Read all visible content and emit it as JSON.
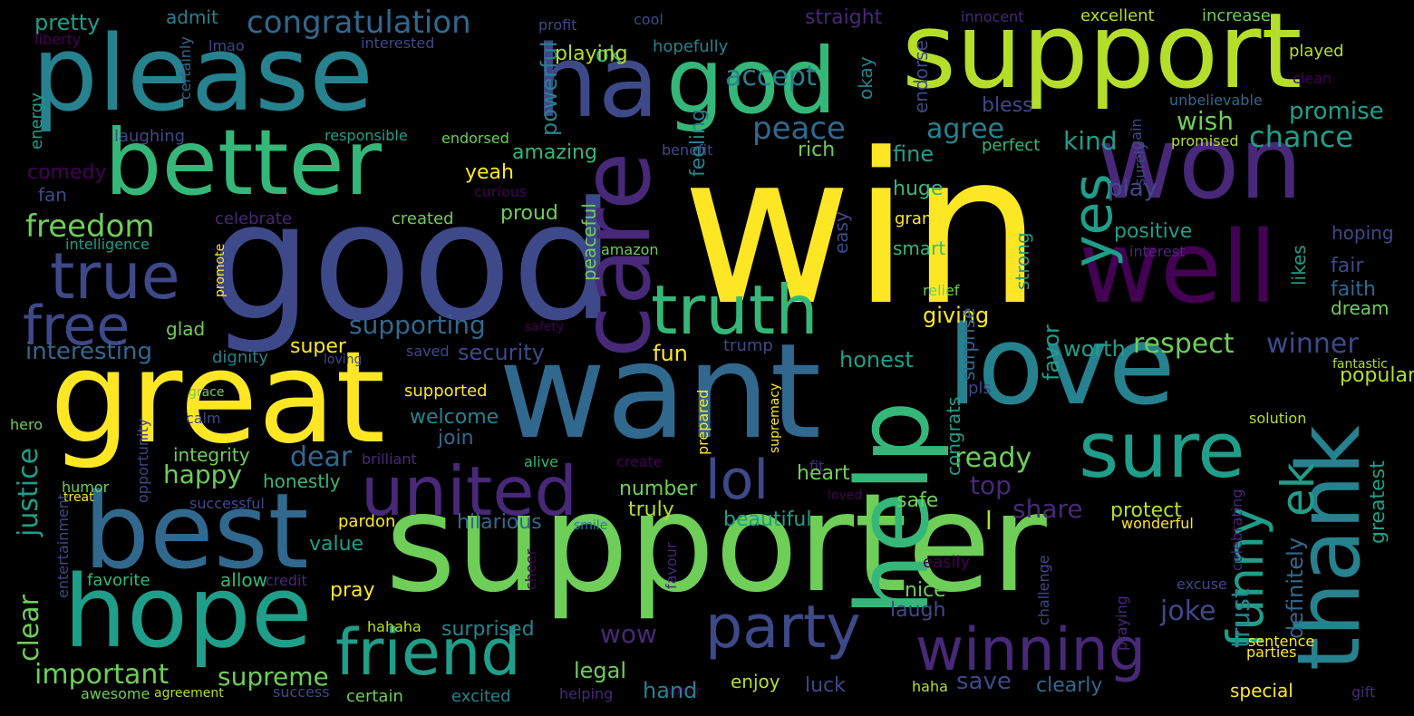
{
  "colors": {
    "background": "#000000",
    "c1": "#440154",
    "c2": "#482878",
    "c3": "#3e4989",
    "c4": "#31688e",
    "c5": "#26828e",
    "c6": "#1f9e89",
    "c7": "#35b779",
    "c8": "#6ece58",
    "c9": "#b5de2b",
    "c10": "#fde725"
  },
  "words": [
    "win",
    "good",
    "supporter",
    "want",
    "great",
    "support",
    "please",
    "love",
    "better",
    "ha",
    "god",
    "won",
    "well",
    "best",
    "hope",
    "help",
    "care",
    "thank",
    "sure",
    "truth",
    "united",
    "friend",
    "winning",
    "party",
    "true",
    "free",
    "lol",
    "yes",
    "funny",
    "ek",
    "congratulation",
    "freedom",
    "interesting",
    "important",
    "supreme",
    "peace",
    "agree",
    "accept",
    "kind",
    "chance",
    "wish",
    "promise",
    "supporting",
    "security",
    "respect",
    "winner",
    "happy",
    "dear",
    "justice",
    "clear",
    "welcome",
    "join",
    "ready",
    "top",
    "share",
    "protect",
    "joke",
    "trust",
    "definitely",
    "greatest",
    "pretty",
    "admit",
    "ok",
    "playing",
    "straight",
    "excellent",
    "increase",
    "innocent",
    "cool",
    "profit",
    "liberty",
    "interested",
    "lmao",
    "certainly",
    "hopefully",
    "played",
    "clean",
    "unbelievable",
    "endorse",
    "bless",
    "okay",
    "powerful",
    "responsible",
    "endorsed",
    "benefit",
    "rich",
    "fine",
    "perfect",
    "gain",
    "promised",
    "laughing",
    "energy",
    "comedy",
    "fan",
    "amazing",
    "yeah",
    "feeling",
    "curious",
    "surely",
    "huge",
    "celebrate",
    "created",
    "proud",
    "grand",
    "play",
    "easy",
    "positive",
    "hoping",
    "intelligence",
    "promote",
    "amazon",
    "smart",
    "interest",
    "likes",
    "fair",
    "faith",
    "relief",
    "strong",
    "peaceful",
    "glad",
    "dream",
    "safety",
    "giving",
    "super",
    "fun",
    "trump",
    "saved",
    "dignity",
    "loving",
    "honest",
    "worth",
    "favor",
    "popular",
    "fantastic",
    "pls",
    "grace",
    "supported",
    "supremacy",
    "surprise",
    "congrats",
    "calm",
    "hero",
    "solution",
    "fit",
    "prepared",
    "integrity",
    "opportunity",
    "brilliant",
    "alive",
    "create",
    "heart",
    "humor",
    "honestly",
    "number",
    "treat",
    "successful",
    "loved",
    "safe",
    "truly",
    "hilarious",
    "smile",
    "beautiful",
    "value",
    "pardon",
    "wonderful",
    "l",
    "challenge",
    "celebrating",
    "entertainment",
    "favorite",
    "allow",
    "credit",
    "cheer",
    "easily",
    "pray",
    "nice",
    "laugh",
    "excuse",
    "favour",
    "praying",
    "wow",
    "surprised",
    "hahaha",
    "legal",
    "parties",
    "sentence",
    "honor",
    "enjoy",
    "luck",
    "clearly",
    "save",
    "certain",
    "excited",
    "success",
    "agreement",
    "awesome",
    "haha",
    "hand",
    "helping",
    "special",
    "gift"
  ]
}
